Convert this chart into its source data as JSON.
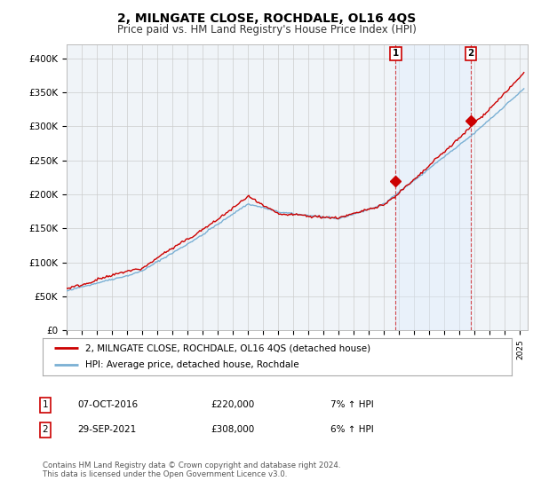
{
  "title": "2, MILNGATE CLOSE, ROCHDALE, OL16 4QS",
  "subtitle": "Price paid vs. HM Land Registry's House Price Index (HPI)",
  "xlim_start": 1995.0,
  "xlim_end": 2025.5,
  "ylim": [
    0,
    420000
  ],
  "yticks": [
    0,
    50000,
    100000,
    150000,
    200000,
    250000,
    300000,
    350000,
    400000
  ],
  "ytick_labels": [
    "£0",
    "£50K",
    "£100K",
    "£150K",
    "£200K",
    "£250K",
    "£300K",
    "£350K",
    "£400K"
  ],
  "sale1_date": 2016.77,
  "sale1_price": 220000,
  "sale1_label": "1",
  "sale2_date": 2021.75,
  "sale2_price": 308000,
  "sale2_label": "2",
  "legend_property": "2, MILNGATE CLOSE, ROCHDALE, OL16 4QS (detached house)",
  "legend_hpi": "HPI: Average price, detached house, Rochdale",
  "table_row1_num": "1",
  "table_row1_date": "07-OCT-2016",
  "table_row1_price": "£220,000",
  "table_row1_hpi": "7% ↑ HPI",
  "table_row2_num": "2",
  "table_row2_date": "29-SEP-2021",
  "table_row2_price": "£308,000",
  "table_row2_hpi": "6% ↑ HPI",
  "footnote": "Contains HM Land Registry data © Crown copyright and database right 2024.\nThis data is licensed under the Open Government Licence v3.0.",
  "line_red": "#cc0000",
  "line_blue": "#7ab0d4",
  "shade_color": "#ddeeff",
  "bg_color": "#ffffff",
  "plot_bg": "#f0f4f8",
  "grid_color": "#cccccc",
  "title_fontsize": 10,
  "subtitle_fontsize": 8.5
}
